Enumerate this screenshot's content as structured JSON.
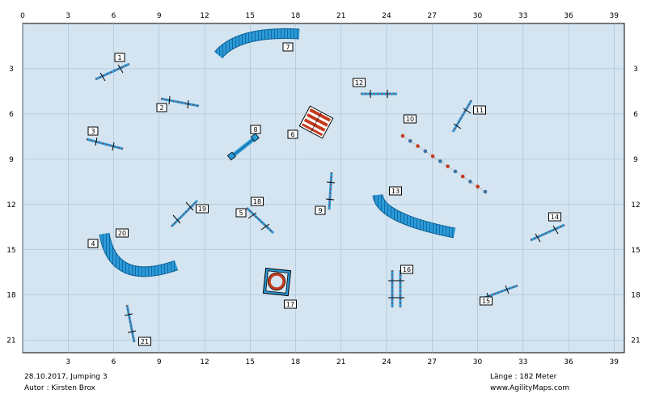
{
  "course": {
    "date_title": "28.10.2017, Jumping 3",
    "author": "Autor : Kirsten Brox",
    "length": "Länge : 182 Meter",
    "website": "www.AgilityMaps.com"
  },
  "axes": {
    "x_ticks": [
      "0",
      "3",
      "6",
      "9",
      "12",
      "15",
      "18",
      "21",
      "24",
      "27",
      "30",
      "33",
      "36",
      "39"
    ],
    "y_ticks": [
      "3",
      "6",
      "9",
      "12",
      "15",
      "18",
      "21"
    ]
  },
  "colors": {
    "field": "#d4e4f0",
    "obstacle_blue": "#2a9ad8",
    "pole_red": "#b03020",
    "outline": "#000000"
  },
  "obstacles": [
    {
      "number": "1",
      "kind": "jump",
      "icon": "jump-bar-icon"
    },
    {
      "number": "2",
      "kind": "jump",
      "icon": "jump-bar-icon"
    },
    {
      "number": "3",
      "kind": "jump",
      "icon": "jump-bar-icon"
    },
    {
      "number": "4",
      "kind": "tunnel",
      "icon": "tunnel-icon"
    },
    {
      "number": "5",
      "kind": "jump",
      "icon": "jump-bar-icon"
    },
    {
      "number": "6",
      "kind": "wall",
      "icon": "wall-icon"
    },
    {
      "number": "7",
      "kind": "tunnel",
      "icon": "tunnel-icon"
    },
    {
      "number": "8",
      "kind": "long-jump",
      "icon": "long-jump-icon"
    },
    {
      "number": "9",
      "kind": "jump",
      "icon": "jump-bar-icon"
    },
    {
      "number": "10",
      "kind": "weave-poles",
      "icon": "weave-poles-icon"
    },
    {
      "number": "11",
      "kind": "jump",
      "icon": "jump-bar-icon"
    },
    {
      "number": "12",
      "kind": "jump",
      "icon": "jump-bar-icon"
    },
    {
      "number": "13",
      "kind": "tunnel",
      "icon": "tunnel-icon"
    },
    {
      "number": "14",
      "kind": "jump",
      "icon": "jump-bar-icon"
    },
    {
      "number": "15",
      "kind": "jump",
      "icon": "jump-bar-icon"
    },
    {
      "number": "16",
      "kind": "double-jump",
      "icon": "double-jump-icon"
    },
    {
      "number": "17",
      "kind": "tire",
      "icon": "tire-icon"
    },
    {
      "number": "18",
      "kind": "jump",
      "icon": "jump-bar-icon"
    },
    {
      "number": "19",
      "kind": "jump",
      "icon": "jump-bar-icon"
    },
    {
      "number": "20",
      "kind": "tunnel",
      "icon": "tunnel-icon"
    },
    {
      "number": "21",
      "kind": "jump",
      "icon": "jump-bar-icon"
    }
  ]
}
